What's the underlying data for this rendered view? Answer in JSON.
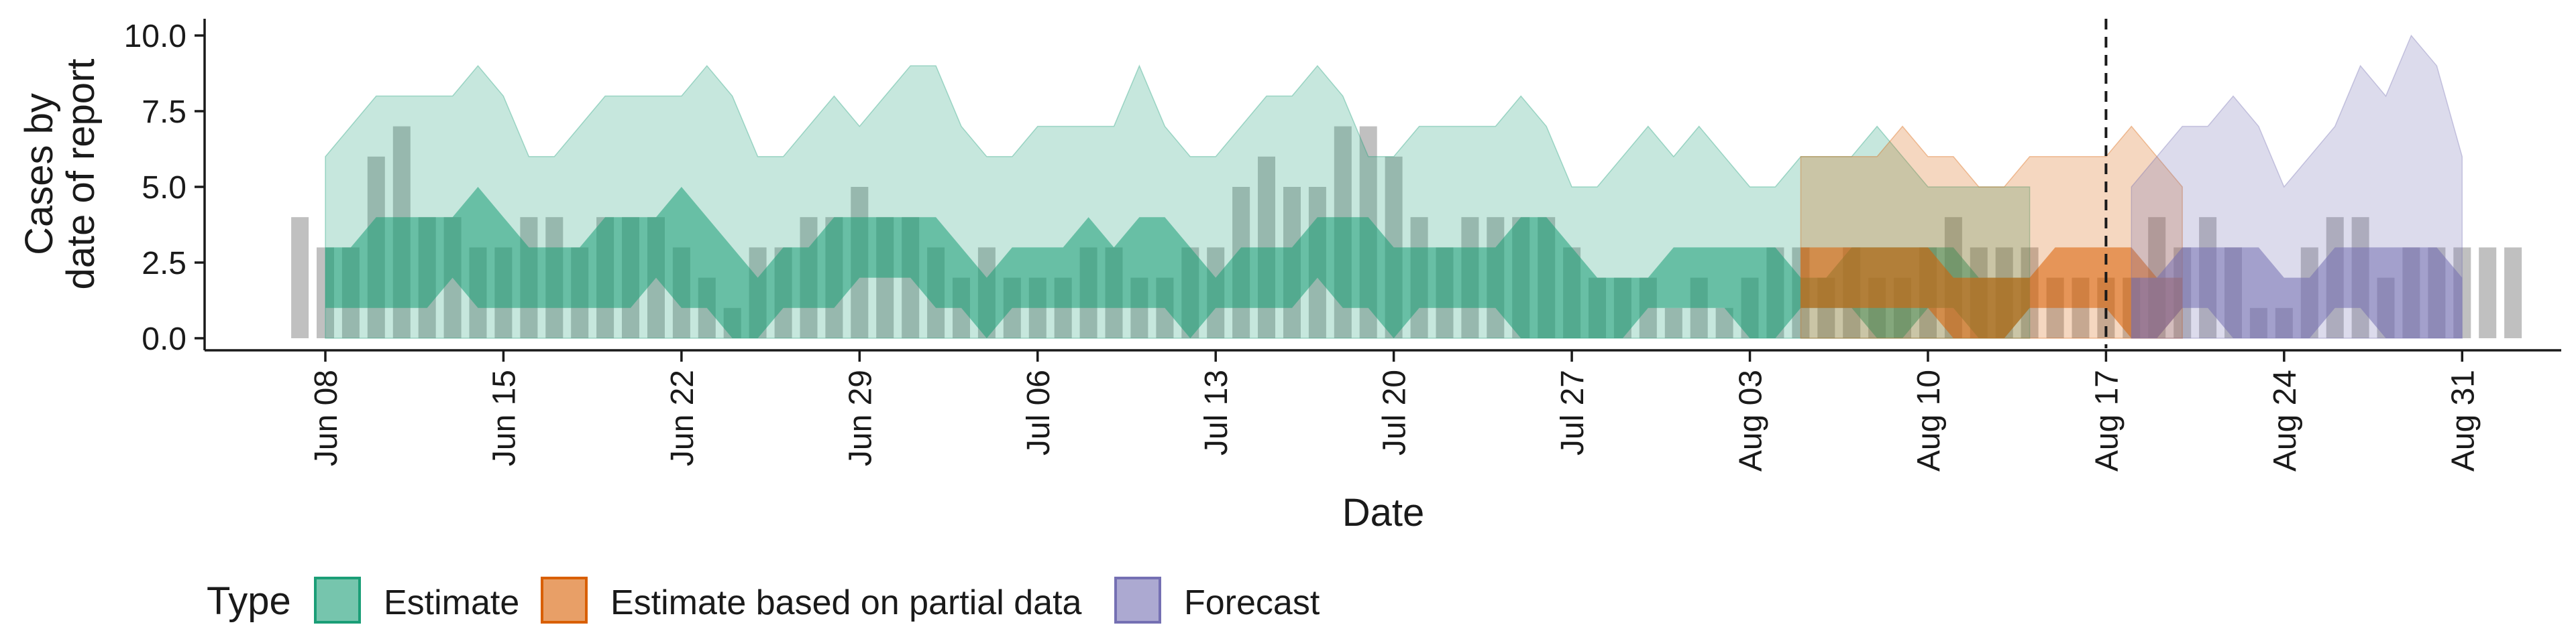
{
  "chart_data": {
    "type": "area",
    "title": "",
    "xlabel": "Date",
    "ylabel": [
      "Cases by",
      "date of report"
    ],
    "ylim": [
      0,
      10
    ],
    "yticks": [
      "0.0",
      "2.5",
      "5.0",
      "7.5",
      "10.0"
    ],
    "xticks": [
      "Jun 08",
      "Jun 15",
      "Jun 22",
      "Jun 29",
      "Jul 06",
      "Jul 13",
      "Jul 20",
      "Jul 27",
      "Aug 03",
      "Aug 10",
      "Aug 17",
      "Aug 24",
      "Aug 31"
    ],
    "x_start": "Jun 07",
    "x_end": "Aug 31",
    "vline": "Aug 17",
    "grid": false,
    "legend": {
      "title": "Type",
      "position": "bottom",
      "entries": [
        {
          "name": "Estimate",
          "color": "#1b9e77"
        },
        {
          "name": "Estimate based on partial data",
          "color": "#d95f02"
        },
        {
          "name": "Forecast",
          "color": "#7570b3"
        }
      ]
    },
    "bar_color": "#8c8c8c",
    "reported_cases": [
      4,
      3,
      3,
      6,
      7,
      4,
      4,
      3,
      3,
      4,
      4,
      3,
      4,
      4,
      4,
      3,
      2,
      1,
      3,
      3,
      4,
      4,
      5,
      4,
      4,
      3,
      2,
      3,
      2,
      2,
      2,
      3,
      3,
      2,
      2,
      3,
      3,
      5,
      6,
      5,
      5,
      7,
      7,
      6,
      4,
      3,
      4,
      4,
      4,
      4,
      3,
      2,
      2,
      2,
      1,
      2,
      1,
      2,
      3,
      3,
      2,
      3,
      2,
      2,
      3,
      4,
      3,
      3,
      3,
      2,
      2,
      2,
      2,
      4,
      3,
      4,
      3,
      1,
      1,
      3,
      4,
      4,
      2,
      3,
      3,
      3,
      3,
      3
    ],
    "series": [
      {
        "name": "Estimate",
        "start": "Jun 08",
        "upper_90": [
          6,
          7,
          8,
          8,
          8,
          8,
          9,
          8,
          6,
          6,
          7,
          8,
          8,
          8,
          8,
          9,
          8,
          6,
          6,
          7,
          8,
          7,
          8,
          9,
          9,
          7,
          6,
          6,
          7,
          7,
          7,
          7,
          9,
          7,
          6,
          6,
          7,
          8,
          8,
          9,
          8,
          6,
          6,
          7,
          7,
          7,
          7,
          8,
          7,
          5,
          5,
          6,
          7,
          6,
          7,
          6,
          5,
          5,
          6,
          6,
          6,
          7,
          6,
          5,
          5,
          5,
          5,
          5
        ],
        "lower_90": [
          0,
          0,
          0,
          0,
          0,
          0,
          0,
          0,
          0,
          0,
          0,
          0,
          0,
          0,
          0,
          0,
          0,
          0,
          0,
          0,
          0,
          0,
          0,
          0,
          0,
          0,
          0,
          0,
          0,
          0,
          0,
          0,
          0,
          0,
          0,
          0,
          0,
          0,
          0,
          0,
          0,
          0,
          0,
          0,
          0,
          0,
          0,
          0,
          0,
          0,
          0,
          0,
          0,
          0,
          0,
          0,
          0,
          0,
          0,
          0,
          0,
          0,
          0,
          0,
          0,
          0,
          0,
          0
        ],
        "upper_50": [
          3,
          3,
          4,
          4,
          4,
          4,
          5,
          4,
          3,
          3,
          3,
          4,
          4,
          4,
          5,
          4,
          3,
          2,
          3,
          3,
          4,
          4,
          4,
          4,
          4,
          3,
          2,
          3,
          3,
          3,
          4,
          3,
          4,
          4,
          3,
          2,
          3,
          3,
          3,
          4,
          4,
          4,
          3,
          3,
          3,
          3,
          3,
          4,
          4,
          3,
          2,
          2,
          2,
          3,
          3,
          3,
          3,
          3,
          2,
          2,
          3,
          3,
          3,
          3,
          3,
          2,
          2,
          2
        ],
        "lower_50": [
          1,
          1,
          1,
          1,
          1,
          2,
          1,
          1,
          1,
          1,
          1,
          1,
          1,
          2,
          1,
          1,
          0,
          0,
          1,
          1,
          1,
          2,
          2,
          2,
          1,
          1,
          0,
          1,
          1,
          1,
          1,
          1,
          1,
          1,
          0,
          1,
          1,
          1,
          1,
          2,
          1,
          1,
          0,
          1,
          1,
          1,
          1,
          0,
          0,
          0,
          0,
          0,
          1,
          1,
          1,
          1,
          0,
          0,
          1,
          1,
          1,
          0,
          0,
          1,
          1,
          0,
          0,
          1
        ]
      },
      {
        "name": "Estimate based on partial data",
        "start": "Aug 05",
        "upper_90": [
          6,
          6,
          6,
          6,
          7,
          6,
          6,
          5,
          5,
          6,
          6,
          6,
          6,
          7,
          6,
          5
        ],
        "lower_90": [
          0,
          0,
          0,
          0,
          0,
          0,
          0,
          0,
          0,
          0,
          0,
          0,
          0,
          0,
          0,
          0
        ],
        "upper_50": [
          3,
          3,
          3,
          3,
          3,
          3,
          2,
          2,
          2,
          2,
          3,
          3,
          3,
          3,
          2,
          2
        ],
        "lower_50": [
          1,
          1,
          1,
          1,
          1,
          1,
          0,
          0,
          0,
          1,
          1,
          1,
          1,
          0,
          0,
          1
        ]
      },
      {
        "name": "Forecast",
        "start": "Aug 18",
        "upper_90": [
          5,
          6,
          7,
          7,
          8,
          7,
          5,
          6,
          7,
          9,
          8,
          10,
          9,
          6
        ],
        "lower_90": [
          0,
          0,
          0,
          0,
          0,
          0,
          0,
          0,
          0,
          0,
          0,
          0,
          0,
          0
        ],
        "upper_50": [
          2,
          2,
          3,
          3,
          3,
          3,
          2,
          2,
          3,
          3,
          3,
          3,
          3,
          2
        ],
        "lower_50": [
          0,
          0,
          1,
          1,
          0,
          0,
          0,
          0,
          1,
          1,
          0,
          0,
          0,
          0
        ]
      }
    ]
  }
}
